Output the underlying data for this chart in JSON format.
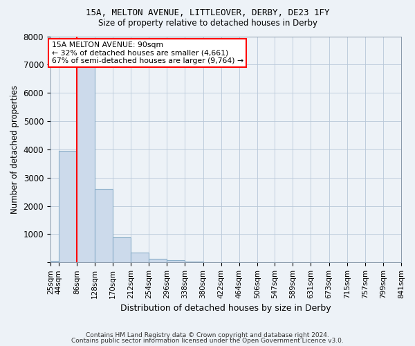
{
  "title1": "15A, MELTON AVENUE, LITTLEOVER, DERBY, DE23 1FY",
  "title2": "Size of property relative to detached houses in Derby",
  "xlabel": "Distribution of detached houses by size in Derby",
  "ylabel": "Number of detached properties",
  "bar_color": "#ccdaeb",
  "bar_edgecolor": "#8aaec8",
  "property_line_x": 86,
  "annotation_line1": "15A MELTON AVENUE: 90sqm",
  "annotation_line2": "← 32% of detached houses are smaller (4,661)",
  "annotation_line3": "67% of semi-detached houses are larger (9,764) →",
  "footer1": "Contains HM Land Registry data © Crown copyright and database right 2024.",
  "footer2": "Contains public sector information licensed under the Open Government Licence v3.0.",
  "bin_edges": [
    25,
    44,
    86,
    128,
    170,
    212,
    254,
    296,
    338,
    380,
    422,
    464,
    506,
    547,
    589,
    631,
    673,
    715,
    757,
    799,
    841
  ],
  "bar_heights": [
    50,
    3950,
    7500,
    2600,
    880,
    340,
    120,
    70,
    30,
    10,
    5,
    0,
    0,
    0,
    0,
    0,
    0,
    0,
    0,
    0
  ],
  "ylim": [
    0,
    8000
  ],
  "yticks": [
    0,
    1000,
    2000,
    3000,
    4000,
    5000,
    6000,
    7000,
    8000
  ],
  "background_color": "#edf2f7",
  "plot_bg_color": "#edf2f7",
  "grid_color": "#b8c8d8"
}
